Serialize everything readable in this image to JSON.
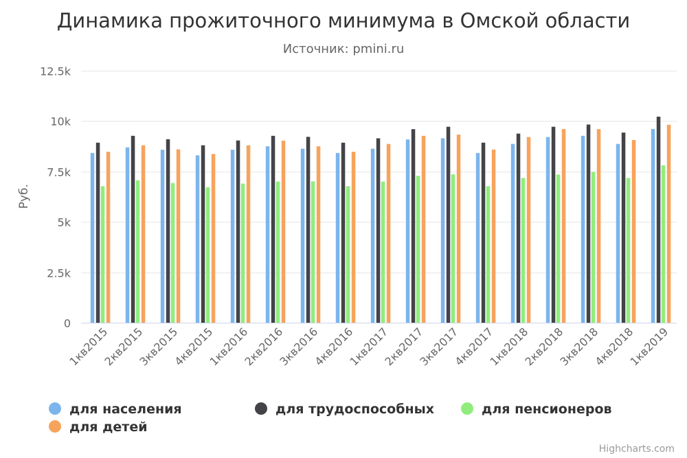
{
  "chart_data": {
    "type": "bar",
    "title": "Динамика прожиточного минимума в Омской области",
    "subtitle": "Источник: pmini.ru",
    "ylabel": "Руб.",
    "xlabel": "",
    "ylim": [
      0,
      12500
    ],
    "yticks": [
      {
        "value": 0,
        "label": "0"
      },
      {
        "value": 2500,
        "label": "2.5k"
      },
      {
        "value": 5000,
        "label": "5k"
      },
      {
        "value": 7500,
        "label": "7.5k"
      },
      {
        "value": 10000,
        "label": "10k"
      },
      {
        "value": 12500,
        "label": "12.5k"
      }
    ],
    "categories": [
      "1кв2015",
      "2кв2015",
      "3кв2015",
      "4кв2015",
      "1кв2016",
      "2кв2016",
      "3кв2016",
      "4кв2016",
      "1кв2017",
      "2кв2017",
      "3кв2017",
      "4кв2017",
      "1кв2018",
      "2кв2018",
      "3кв2018",
      "4кв2018",
      "1кв2019"
    ],
    "series": [
      {
        "name": "для населения",
        "color": "#7cb5ec",
        "values": [
          8420,
          8700,
          8580,
          8300,
          8580,
          8750,
          8630,
          8420,
          8630,
          9090,
          9150,
          8420,
          8870,
          9210,
          9270,
          8870,
          9610
        ]
      },
      {
        "name": "для трудоспособных",
        "color": "#434348",
        "values": [
          8930,
          9270,
          9100,
          8800,
          9040,
          9270,
          9220,
          8930,
          9150,
          9600,
          9720,
          8930,
          9380,
          9720,
          9830,
          9430,
          10220
        ]
      },
      {
        "name": "для пенсионеров",
        "color": "#90ed7d",
        "values": [
          6770,
          7060,
          6930,
          6720,
          6900,
          7000,
          7010,
          6770,
          7000,
          7290,
          7360,
          6770,
          7180,
          7350,
          7480,
          7180,
          7810
        ]
      },
      {
        "name": "для детей",
        "color": "#f7a35c",
        "values": [
          8480,
          8800,
          8600,
          8370,
          8800,
          9030,
          8750,
          8480,
          8870,
          9270,
          9330,
          8590,
          9210,
          9610,
          9600,
          9060,
          9820
        ]
      }
    ],
    "grid": true,
    "legend_position": "bottom"
  },
  "credits": "Highcharts.com"
}
